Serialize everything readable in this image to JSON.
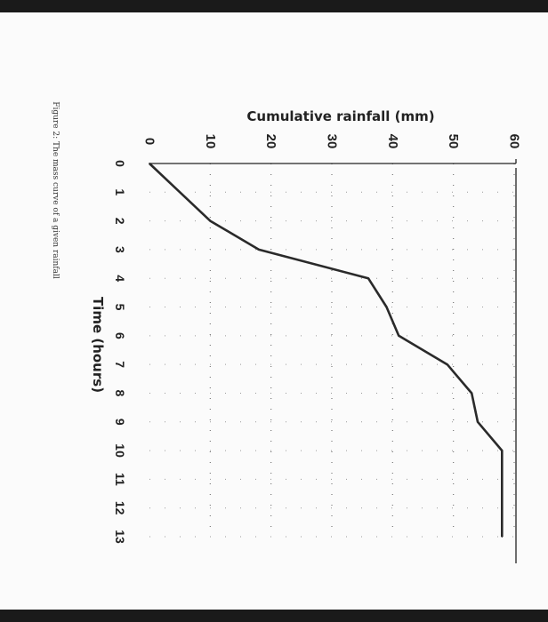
{
  "caption": "Figure 2: The mass curve of a given rainfall",
  "chart_data": {
    "type": "line",
    "title": "",
    "xlabel": "Time (hours)",
    "ylabel": "Cumulative rainfall (mm)",
    "x_ticks": [
      0,
      1,
      2,
      3,
      4,
      5,
      6,
      7,
      8,
      9,
      10,
      11,
      12,
      13
    ],
    "y_ticks": [
      0,
      10,
      20,
      30,
      40,
      50,
      60
    ],
    "xlim": [
      0,
      13
    ],
    "ylim": [
      0,
      60
    ],
    "grid": "dotted",
    "series": [
      {
        "x": [
          0,
          0.8,
          2,
          3,
          4,
          5,
          6,
          7,
          8,
          9,
          10,
          11,
          12,
          13
        ],
        "y": [
          0,
          4,
          10,
          18,
          36,
          39,
          41,
          49,
          53,
          54,
          58,
          58,
          58,
          58
        ]
      }
    ],
    "line_color": "#2a2a2a"
  }
}
